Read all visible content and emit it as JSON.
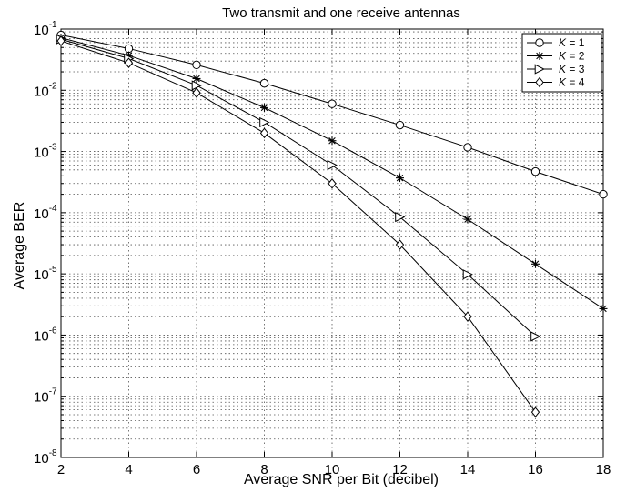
{
  "chart_data": {
    "type": "line",
    "title": "Two transmit and one receive antennas",
    "xlabel": "Average SNR per Bit (decibel)",
    "ylabel": "Average BER",
    "xlim": [
      2,
      18
    ],
    "ylim": [
      1e-08,
      0.1
    ],
    "yscale": "log",
    "grid": true,
    "legend_position": "top-right",
    "x_ticks": [
      "2",
      "4",
      "6",
      "8",
      "10",
      "12",
      "14",
      "16",
      "18"
    ],
    "y_ticks": [
      {
        "base": "10",
        "exp": "-8"
      },
      {
        "base": "10",
        "exp": "-7"
      },
      {
        "base": "10",
        "exp": "-6"
      },
      {
        "base": "10",
        "exp": "-5"
      },
      {
        "base": "10",
        "exp": "-4"
      },
      {
        "base": "10",
        "exp": "-3"
      },
      {
        "base": "10",
        "exp": "-2"
      },
      {
        "base": "10",
        "exp": "-1"
      }
    ],
    "series": [
      {
        "name": "K = 1",
        "italic": "K",
        "rest": " = 1",
        "marker": "circle",
        "points": [
          [
            2,
            0.08
          ],
          [
            4,
            0.048
          ],
          [
            6,
            0.026
          ],
          [
            8,
            0.013
          ],
          [
            10,
            0.006
          ],
          [
            12,
            0.0027
          ],
          [
            14,
            0.00117
          ],
          [
            16,
            0.00047
          ],
          [
            18,
            0.0002
          ]
        ]
      },
      {
        "name": "K = 2",
        "italic": "K",
        "rest": " = 2",
        "marker": "star",
        "points": [
          [
            2,
            0.072
          ],
          [
            4,
            0.037
          ],
          [
            6,
            0.0155
          ],
          [
            8,
            0.0052
          ],
          [
            10,
            0.0015
          ],
          [
            12,
            0.00037
          ],
          [
            14,
            7.8e-05
          ],
          [
            16,
            1.45e-05
          ],
          [
            18,
            2.7e-06
          ]
        ]
      },
      {
        "name": "K = 3",
        "italic": "K",
        "rest": " = 3",
        "marker": "triangle-right",
        "points": [
          [
            2,
            0.068
          ],
          [
            4,
            0.033
          ],
          [
            6,
            0.012
          ],
          [
            8,
            0.003
          ],
          [
            10,
            0.0006
          ],
          [
            12,
            8.5e-05
          ],
          [
            14,
            9.8e-06
          ],
          [
            16,
            9.5e-07
          ]
        ]
      },
      {
        "name": "K = 4",
        "italic": "K",
        "rest": " = 4",
        "marker": "diamond",
        "points": [
          [
            2,
            0.064
          ],
          [
            4,
            0.028
          ],
          [
            6,
            0.0091
          ],
          [
            8,
            0.002
          ],
          [
            10,
            0.0003
          ],
          [
            12,
            3e-05
          ],
          [
            14,
            2e-06
          ],
          [
            16,
            5.5e-08
          ]
        ]
      }
    ]
  }
}
